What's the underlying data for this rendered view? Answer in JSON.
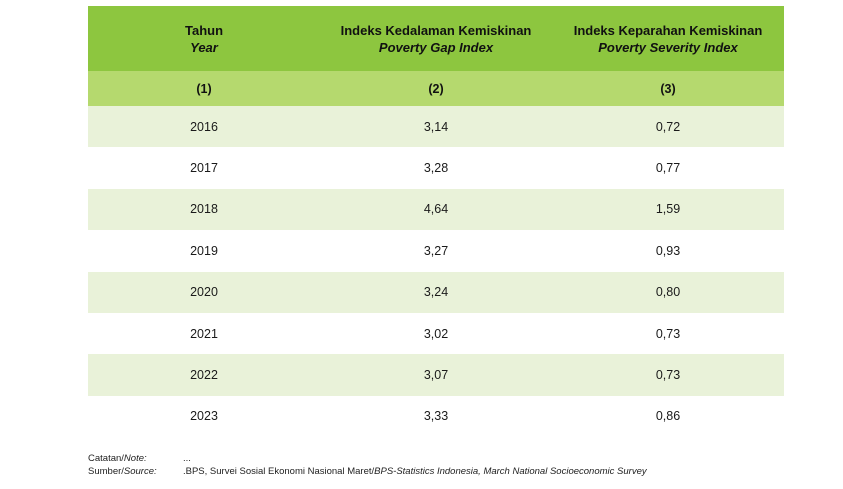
{
  "table": {
    "headers": [
      {
        "id": "Tahun",
        "en": "Year"
      },
      {
        "id": "Indeks Kedalaman Kemiskinan",
        "en": "Poverty Gap Index"
      },
      {
        "id": "Indeks Keparahan Kemiskinan",
        "en": "Poverty Severity Index"
      }
    ],
    "column_numbers": [
      "(1)",
      "(2)",
      "(3)"
    ],
    "rows": [
      {
        "year": "2016",
        "gap": "3,14",
        "severity": "0,72"
      },
      {
        "year": "2017",
        "gap": "3,28",
        "severity": "0,77"
      },
      {
        "year": "2018",
        "gap": "4,64",
        "severity": "1,59"
      },
      {
        "year": "2019",
        "gap": "3,27",
        "severity": "0,93"
      },
      {
        "year": "2020",
        "gap": "3,24",
        "severity": "0,80"
      },
      {
        "year": "2021",
        "gap": "3,02",
        "severity": "0,73"
      },
      {
        "year": "2022",
        "gap": "3,07",
        "severity": "0,73"
      },
      {
        "year": "2023",
        "gap": "3,33",
        "severity": "0,86"
      }
    ]
  },
  "notes": {
    "note_label_id": "Catatan/",
    "note_label_en": "Note:",
    "note_value": "...",
    "source_label_id": "Sumber/",
    "source_label_en": "Source:",
    "source_value_id": ".BPS, Survei Sosial Ekonomi Nasional Maret/",
    "source_value_en": "BPS-Statistics Indonesia, March National Socioeconomic Survey"
  },
  "colors": {
    "header_bg": "#8dc63f",
    "number_row_bg": "#b5d96e",
    "stripe_bg": "#e9f2d9"
  }
}
